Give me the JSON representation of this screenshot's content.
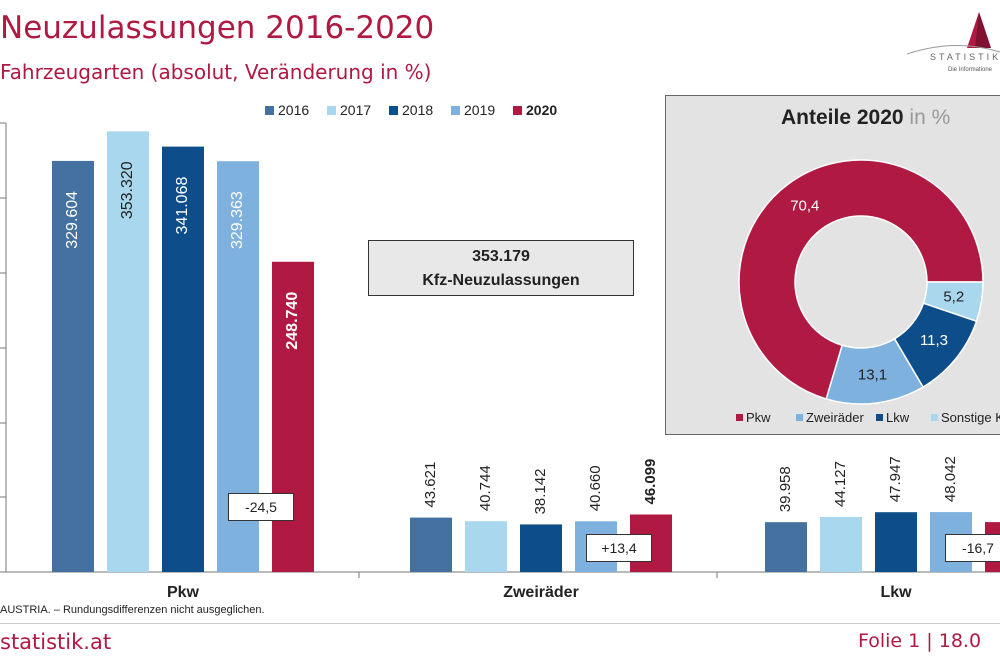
{
  "header": {
    "title": "Neuzulassungen 2016-2020",
    "subtitle": "Fahrzeugarten (absolut, Veränderung in %)",
    "logo_text": "STATISTIK A",
    "logo_sub": "Die Informatione"
  },
  "colors": {
    "2016": "#44719f",
    "2017": "#a9d8ee",
    "2018": "#0d4e8a",
    "2019": "#7eb1dd",
    "2020": "#b01942"
  },
  "chart_data": [
    {
      "type": "bar",
      "categories": [
        "Pkw",
        "Zweiräder",
        "Lkw"
      ],
      "series": [
        {
          "name": "2016",
          "values": [
            329604,
            43621,
            39958
          ],
          "labels": [
            "329.604",
            "43.621",
            "39.958"
          ]
        },
        {
          "name": "2017",
          "values": [
            353320,
            40744,
            44127
          ],
          "labels": [
            "353.320",
            "40.744",
            "44.127"
          ]
        },
        {
          "name": "2018",
          "values": [
            341068,
            38142,
            47947
          ],
          "labels": [
            "341.068",
            "38.142",
            "47.947"
          ]
        },
        {
          "name": "2019",
          "values": [
            329363,
            40660,
            48042
          ],
          "labels": [
            "329.363",
            "40.660",
            "48.042"
          ]
        },
        {
          "name": "2020",
          "values": [
            248740,
            46099,
            40000
          ],
          "labels": [
            "248.740",
            "46.099",
            ""
          ]
        }
      ],
      "changes": [
        "-24,5",
        "+13,4",
        "-16,7"
      ],
      "ylim": [
        0,
        360000
      ],
      "legend_position": "top",
      "grid": false,
      "total": {
        "value": "353.179",
        "label": "Kfz-Neuzulassungen"
      }
    },
    {
      "type": "pie",
      "title": "Anteile 2020",
      "unit": "in %",
      "slices": [
        {
          "name": "Pkw",
          "value": 70.4,
          "label": "70,4",
          "color": "#b01942"
        },
        {
          "name": "Zweiräder",
          "value": 13.1,
          "label": "13,1",
          "color": "#7eb1dd"
        },
        {
          "name": "Lkw",
          "value": 11.3,
          "label": "11,3",
          "color": "#0d4e8a"
        },
        {
          "name": "Sonstige K",
          "value": 5.2,
          "label": "5,2",
          "color": "#a9d8ee"
        }
      ]
    }
  ],
  "footer": {
    "note": "AUSTRIA. – Rundungsdifferenzen nicht ausgeglichen.",
    "site": "statistik.at",
    "page": "Folie 1 | 18.0"
  }
}
